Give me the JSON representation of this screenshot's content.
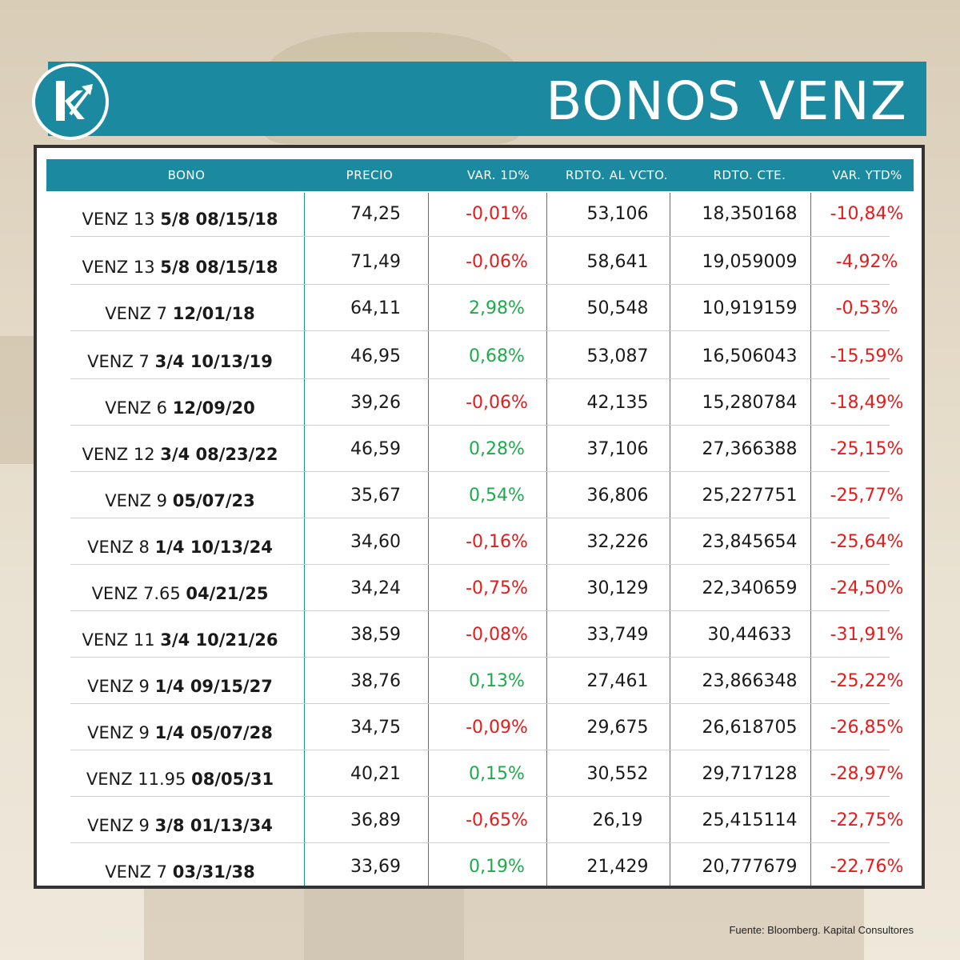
{
  "header": {
    "title": "BONOS VENZ",
    "logo_icon": "kapital-k-arrow-logo-icon"
  },
  "colors": {
    "accent": "#1b8aa0",
    "positive": "#1faa4b",
    "negative": "#e51c1c"
  },
  "table": {
    "columns": [
      "BONO",
      "PRECIO",
      "VAR. 1D%",
      "RDTO. AL VCTO.",
      "RDTO. CTE.",
      "VAR. YTD%"
    ],
    "rows": [
      {
        "name": "VENZ 13",
        "detail": "5/8 08/15/18",
        "precio": "74,25",
        "var1d": "-0,01%",
        "var1d_sign": "neg",
        "rdto_vcto": "53,106",
        "rdto_cte": "18,350168",
        "var_ytd": "-10,84%"
      },
      {
        "name": "VENZ 13",
        "detail": "5/8 08/15/18",
        "precio": "71,49",
        "var1d": "-0,06%",
        "var1d_sign": "neg",
        "rdto_vcto": "58,641",
        "rdto_cte": "19,059009",
        "var_ytd": "-4,92%"
      },
      {
        "name": "VENZ 7",
        "detail": "12/01/18",
        "precio": "64,11",
        "var1d": "2,98%",
        "var1d_sign": "pos",
        "rdto_vcto": "50,548",
        "rdto_cte": "10,919159",
        "var_ytd": "-0,53%"
      },
      {
        "name": "VENZ 7",
        "detail": "3/4 10/13/19",
        "precio": "46,95",
        "var1d": "0,68%",
        "var1d_sign": "pos",
        "rdto_vcto": "53,087",
        "rdto_cte": "16,506043",
        "var_ytd": "-15,59%"
      },
      {
        "name": "VENZ 6",
        "detail": "12/09/20",
        "precio": "39,26",
        "var1d": "-0,06%",
        "var1d_sign": "neg",
        "rdto_vcto": "42,135",
        "rdto_cte": "15,280784",
        "var_ytd": "-18,49%"
      },
      {
        "name": "VENZ 12",
        "detail": "3/4 08/23/22",
        "precio": "46,59",
        "var1d": "0,28%",
        "var1d_sign": "pos",
        "rdto_vcto": "37,106",
        "rdto_cte": "27,366388",
        "var_ytd": "-25,15%"
      },
      {
        "name": "VENZ 9",
        "detail": "05/07/23",
        "precio": "35,67",
        "var1d": "0,54%",
        "var1d_sign": "pos",
        "rdto_vcto": "36,806",
        "rdto_cte": "25,227751",
        "var_ytd": "-25,77%"
      },
      {
        "name": "VENZ 8",
        "detail": "1/4 10/13/24",
        "precio": "34,60",
        "var1d": "-0,16%",
        "var1d_sign": "neg",
        "rdto_vcto": "32,226",
        "rdto_cte": "23,845654",
        "var_ytd": "-25,64%"
      },
      {
        "name": "VENZ 7.65",
        "detail": "04/21/25",
        "precio": "34,24",
        "var1d": "-0,75%",
        "var1d_sign": "neg",
        "rdto_vcto": "30,129",
        "rdto_cte": "22,340659",
        "var_ytd": "-24,50%"
      },
      {
        "name": "VENZ 11",
        "detail": "3/4 10/21/26",
        "precio": "38,59",
        "var1d": "-0,08%",
        "var1d_sign": "neg",
        "rdto_vcto": "33,749",
        "rdto_cte": "30,44633",
        "var_ytd": "-31,91%"
      },
      {
        "name": "VENZ 9",
        "detail": "1/4 09/15/27",
        "precio": "38,76",
        "var1d": "0,13%",
        "var1d_sign": "pos",
        "rdto_vcto": "27,461",
        "rdto_cte": "23,866348",
        "var_ytd": "-25,22%"
      },
      {
        "name": "VENZ 9",
        "detail": "1/4 05/07/28",
        "precio": "34,75",
        "var1d": "-0,09%",
        "var1d_sign": "neg",
        "rdto_vcto": "29,675",
        "rdto_cte": "26,618705",
        "var_ytd": "-26,85%"
      },
      {
        "name": "VENZ 11.95",
        "detail": "08/05/31",
        "precio": "40,21",
        "var1d": "0,15%",
        "var1d_sign": "pos",
        "rdto_vcto": "30,552",
        "rdto_cte": "29,717128",
        "var_ytd": "-28,97%"
      },
      {
        "name": "VENZ 9",
        "detail": "3/8 01/13/34",
        "precio": "36,89",
        "var1d": "-0,65%",
        "var1d_sign": "neg",
        "rdto_vcto": "26,19",
        "rdto_cte": "25,415114",
        "var_ytd": "-22,75%"
      },
      {
        "name": "VENZ 7",
        "detail": "03/31/38",
        "precio": "33,69",
        "var1d": "0,19%",
        "var1d_sign": "pos",
        "rdto_vcto": "21,429",
        "rdto_cte": "20,777679",
        "var_ytd": "-22,76%"
      }
    ]
  },
  "footer": {
    "source": "Fuente: Bloomberg. Kapital Consultores"
  }
}
